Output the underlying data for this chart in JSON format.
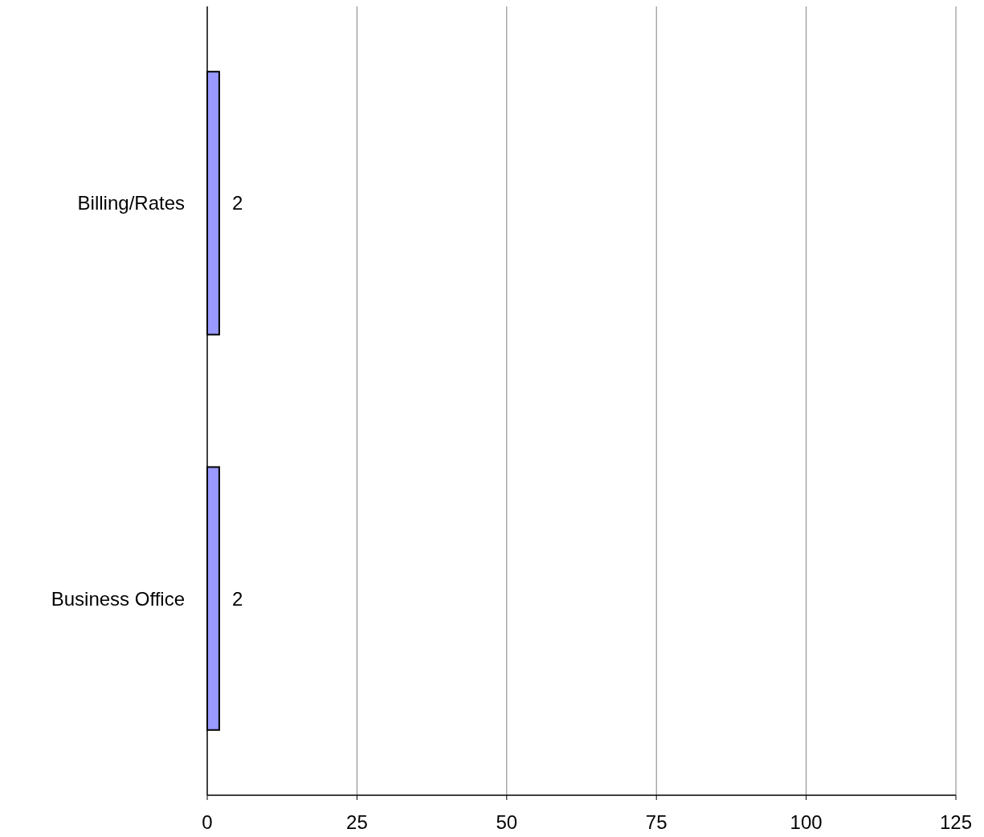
{
  "chart_data": {
    "type": "bar",
    "orientation": "horizontal",
    "categories": [
      "Billing/Rates",
      "Business Office"
    ],
    "values": [
      2,
      2
    ],
    "color": "#9999ff",
    "xlim": [
      0,
      125
    ],
    "xticks": [
      0,
      25,
      50,
      75,
      100,
      125
    ],
    "grid": "x",
    "data_labels": true
  }
}
